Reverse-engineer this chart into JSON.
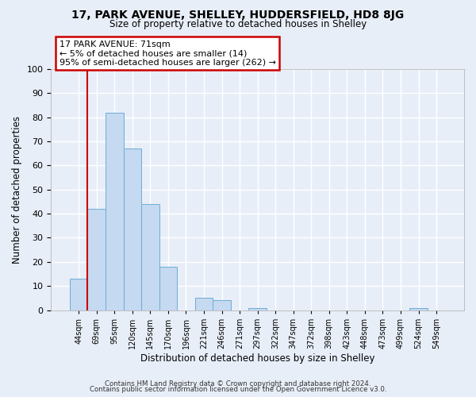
{
  "title1": "17, PARK AVENUE, SHELLEY, HUDDERSFIELD, HD8 8JG",
  "title2": "Size of property relative to detached houses in Shelley",
  "xlabel": "Distribution of detached houses by size in Shelley",
  "ylabel": "Number of detached properties",
  "bin_labels": [
    "44sqm",
    "69sqm",
    "95sqm",
    "120sqm",
    "145sqm",
    "170sqm",
    "196sqm",
    "221sqm",
    "246sqm",
    "271sqm",
    "297sqm",
    "322sqm",
    "347sqm",
    "372sqm",
    "398sqm",
    "423sqm",
    "448sqm",
    "473sqm",
    "499sqm",
    "524sqm",
    "549sqm"
  ],
  "bar_heights": [
    13,
    42,
    82,
    67,
    44,
    18,
    0,
    5,
    4,
    0,
    1,
    0,
    0,
    0,
    0,
    0,
    0,
    0,
    0,
    1,
    0
  ],
  "bar_color": "#c5d9f0",
  "bar_edge_color": "#6baed6",
  "ylim": [
    0,
    100
  ],
  "yticks": [
    0,
    10,
    20,
    30,
    40,
    50,
    60,
    70,
    80,
    90,
    100
  ],
  "property_line_color": "#cc0000",
  "property_line_x": 0.5,
  "annotation_title": "17 PARK AVENUE: 71sqm",
  "annotation_line1": "← 5% of detached houses are smaller (14)",
  "annotation_line2": "95% of semi-detached houses are larger (262) →",
  "annotation_box_color": "#ffffff",
  "annotation_box_edge": "#cc0000",
  "footer1": "Contains HM Land Registry data © Crown copyright and database right 2024.",
  "footer2": "Contains public sector information licensed under the Open Government Licence v3.0.",
  "background_color": "#e8eef8",
  "grid_color": "#ffffff"
}
